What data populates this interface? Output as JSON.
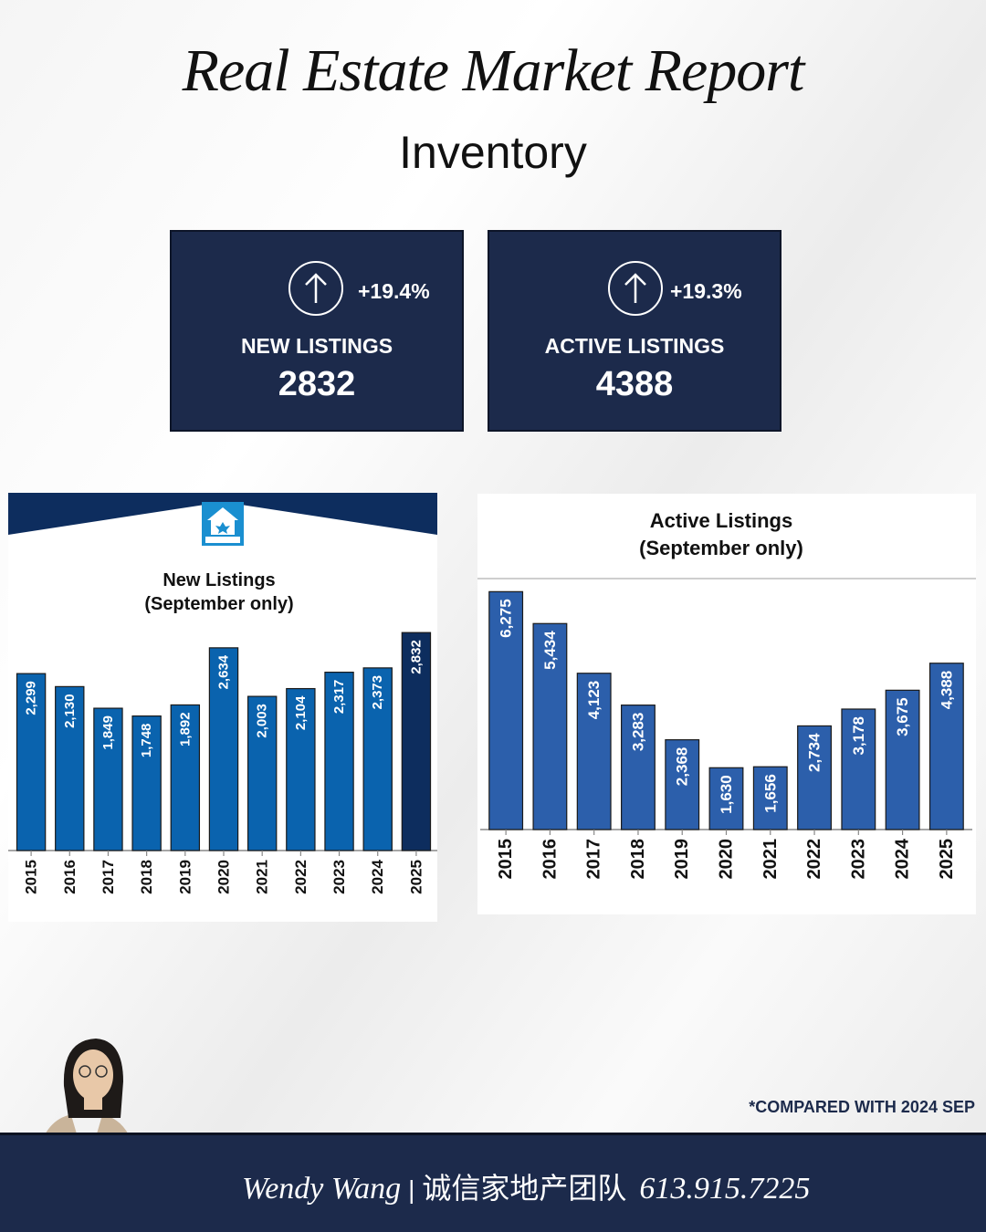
{
  "header": {
    "title": "Real Estate Market Report",
    "subtitle": "Inventory"
  },
  "stats": [
    {
      "change": "+19.4%",
      "label": "NEW LISTINGS",
      "value": "2832",
      "icon": "arrow-up-circle-icon"
    },
    {
      "change": "+19.3%",
      "label": "ACTIVE LISTINGS",
      "value": "4388",
      "icon": "arrow-up-circle-icon"
    }
  ],
  "chart_data": [
    {
      "type": "bar",
      "title": "New Listings",
      "subtitle": "(September only)",
      "categories": [
        "2015",
        "2016",
        "2017",
        "2018",
        "2019",
        "2020",
        "2021",
        "2022",
        "2023",
        "2024",
        "2025"
      ],
      "values": [
        2299,
        2130,
        1849,
        1748,
        1892,
        2634,
        2003,
        2104,
        2317,
        2373,
        2832
      ],
      "labels": [
        "2,299",
        "2,130",
        "1,849",
        "1,748",
        "1,892",
        "2,634",
        "2,003",
        "2,104",
        "2,317",
        "2,373",
        "2,832"
      ],
      "ylim": [
        0,
        3000
      ],
      "grid": false,
      "colors": {
        "bar": "#0a63ae",
        "highlight": "#0d2d5e",
        "header": "#0d2d5e"
      }
    },
    {
      "type": "bar",
      "title": "Active Listings",
      "subtitle": "(September only)",
      "categories": [
        "2015",
        "2016",
        "2017",
        "2018",
        "2019",
        "2020",
        "2021",
        "2022",
        "2023",
        "2024",
        "2025"
      ],
      "values": [
        6275,
        5434,
        4123,
        3283,
        2368,
        1630,
        1656,
        2734,
        3178,
        3675,
        4388
      ],
      "labels": [
        "6,275",
        "5,434",
        "4,123",
        "3,283",
        "2,368",
        "1,630",
        "1,656",
        "2,734",
        "3,178",
        "3,675",
        "4,388"
      ],
      "ylim": [
        0,
        6500
      ],
      "grid": false,
      "colors": {
        "bar": "#2c5fab"
      }
    }
  ],
  "note": "*COMPARED WITH 2024 SEP",
  "footer": {
    "name": "Wendy Wang",
    "team": "诚信家地产团队",
    "phone": "613.915.7225"
  },
  "colors": {
    "navy": "#1c2a4b"
  }
}
